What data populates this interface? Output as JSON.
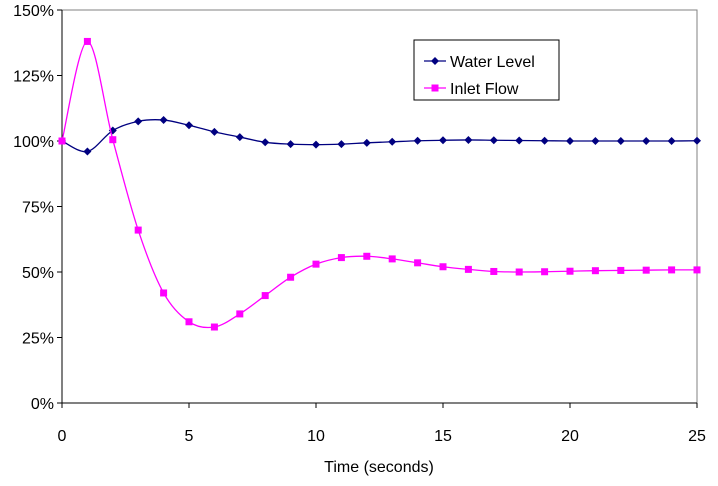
{
  "chart_data": {
    "type": "line",
    "title": "",
    "xlabel": "Time (seconds)",
    "ylabel": "",
    "xlim": [
      0,
      25
    ],
    "ylim": [
      0,
      150
    ],
    "x_ticks": [
      0,
      5,
      10,
      15,
      20,
      25
    ],
    "x_tick_labels": [
      "0",
      "5",
      "10",
      "15",
      "20",
      "25"
    ],
    "y_ticks": [
      0,
      25,
      50,
      75,
      100,
      125,
      150
    ],
    "y_tick_labels": [
      "0%",
      "25%",
      "50%",
      "75%",
      "100%",
      "125%",
      "150%"
    ],
    "grid": false,
    "legend": "top-right",
    "x": [
      0,
      1,
      2,
      3,
      4,
      5,
      6,
      7,
      8,
      9,
      10,
      11,
      12,
      13,
      14,
      15,
      16,
      17,
      18,
      19,
      20,
      21,
      22,
      23,
      24,
      25
    ],
    "series": [
      {
        "name": "Water Level",
        "color": "#000080",
        "marker": "diamond",
        "values": [
          100,
          96,
          104,
          107.5,
          108,
          106,
          103.5,
          101.5,
          99.5,
          98.8,
          98.6,
          98.8,
          99.3,
          99.7,
          100.1,
          100.3,
          100.4,
          100.3,
          100.2,
          100.1,
          100,
          100,
          100,
          100,
          100,
          100.1
        ]
      },
      {
        "name": "Inlet Flow",
        "color": "#ff00ff",
        "marker": "square",
        "values": [
          100,
          138,
          100.5,
          66,
          42,
          31,
          29,
          34,
          41,
          48,
          53,
          55.5,
          56,
          55,
          53.5,
          52,
          51,
          50.2,
          50,
          50.1,
          50.3,
          50.5,
          50.6,
          50.7,
          50.8,
          50.8
        ]
      }
    ]
  }
}
